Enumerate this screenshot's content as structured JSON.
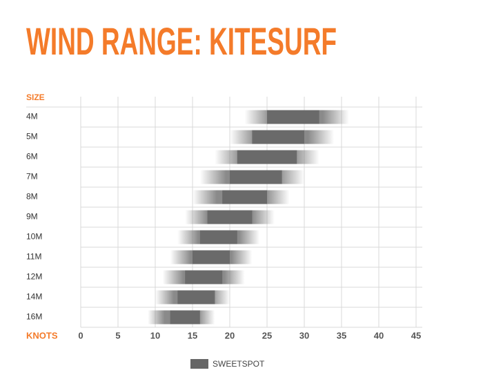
{
  "chart_data": {
    "type": "range",
    "title": "WIND RANGE: KITESURF",
    "y_label": "SIZE",
    "x_label": "KNOTS",
    "categories": [
      "4M",
      "5M",
      "6M",
      "7M",
      "8M",
      "9M",
      "10M",
      "11M",
      "12M",
      "14M",
      "16M"
    ],
    "low": [
      22,
      20,
      18,
      16,
      15,
      14,
      13,
      12,
      11,
      10,
      9
    ],
    "high": [
      36,
      34,
      32,
      30,
      28,
      26,
      24,
      23,
      22,
      20,
      18
    ],
    "color": "#8a8a8a",
    "sweetspot": {
      "name": "SWEETSPOT",
      "color": "#666666",
      "low": [
        25,
        23,
        21,
        20,
        19,
        17,
        16,
        15,
        14,
        13,
        12
      ],
      "high": [
        32,
        30,
        29,
        27,
        25,
        23,
        21,
        20,
        19,
        18,
        16
      ]
    },
    "xlim": [
      0,
      45
    ],
    "xticks": [
      0,
      5,
      10,
      15,
      20,
      25,
      30,
      35,
      40,
      45
    ],
    "grid": true,
    "accent_color": "#f47b2a"
  }
}
